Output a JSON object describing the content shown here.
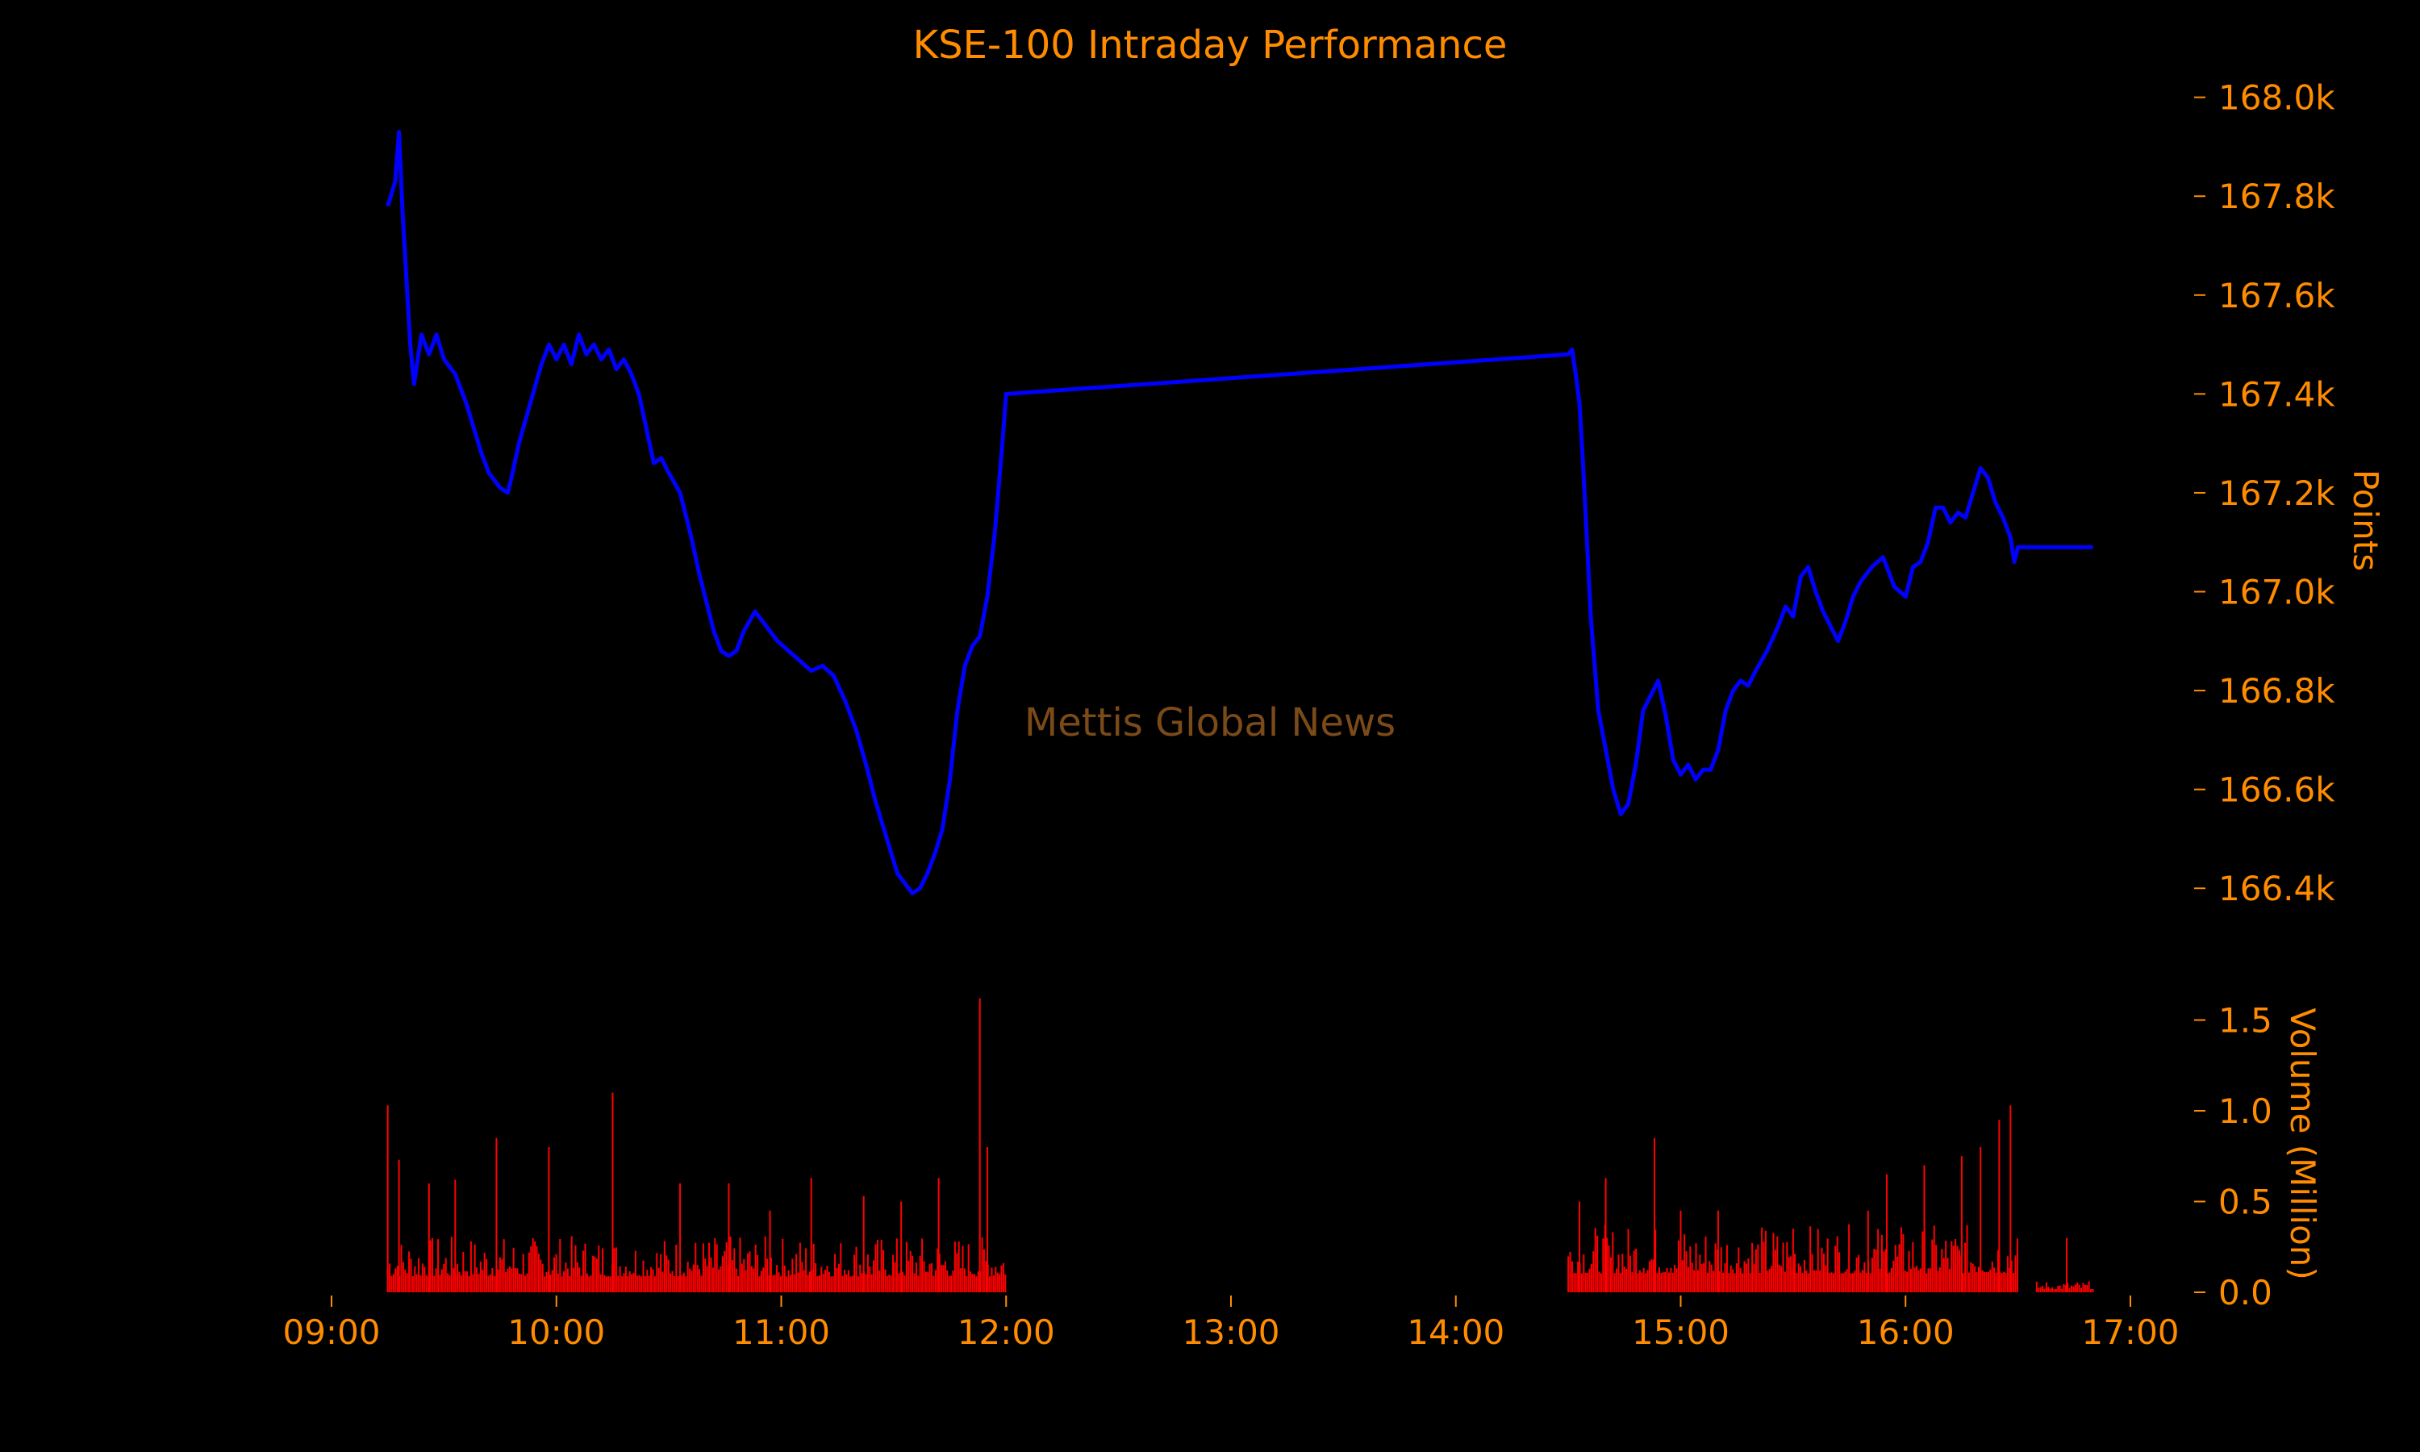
{
  "colors": {
    "background": "#000000",
    "text": "#ff8c00",
    "price_line": "#0000ff",
    "volume_bars": "#ff0000",
    "watermark": "#7a4a18"
  },
  "chart_data": [
    {
      "type": "line",
      "title": "KSE-100 Intraday Performance",
      "ylabel": "Points",
      "watermark": "Mettis Global News",
      "ylim": [
        166340,
        168050
      ],
      "yticks": [
        166400,
        166600,
        166800,
        167000,
        167200,
        167400,
        167600,
        167800,
        168000
      ],
      "ytick_labels": [
        "166.4k",
        "166.6k",
        "166.8k",
        "167.0k",
        "167.2k",
        "167.4k",
        "167.6k",
        "167.8k",
        "168.0k"
      ],
      "y_axis_position": "right",
      "grid": false,
      "series": [
        {
          "points": [
            [
              "09:15",
              167780
            ],
            [
              "09:17",
              167830
            ],
            [
              "09:18",
              167930
            ],
            [
              "09:19",
              167760
            ],
            [
              "09:21",
              167500
            ],
            [
              "09:22",
              167420
            ],
            [
              "09:24",
              167520
            ],
            [
              "09:26",
              167480
            ],
            [
              "09:28",
              167520
            ],
            [
              "09:30",
              167470
            ],
            [
              "09:33",
              167440
            ],
            [
              "09:36",
              167380
            ],
            [
              "09:38",
              167330
            ],
            [
              "09:40",
              167280
            ],
            [
              "09:42",
              167240
            ],
            [
              "09:45",
              167210
            ],
            [
              "09:47",
              167200
            ],
            [
              "09:48",
              167230
            ],
            [
              "09:50",
              167300
            ],
            [
              "09:53",
              167380
            ],
            [
              "09:56",
              167460
            ],
            [
              "09:58",
              167500
            ],
            [
              "10:00",
              167470
            ],
            [
              "10:02",
              167500
            ],
            [
              "10:04",
              167460
            ],
            [
              "10:06",
              167520
            ],
            [
              "10:08",
              167480
            ],
            [
              "10:10",
              167500
            ],
            [
              "10:12",
              167470
            ],
            [
              "10:14",
              167490
            ],
            [
              "10:16",
              167450
            ],
            [
              "10:18",
              167470
            ],
            [
              "10:20",
              167440
            ],
            [
              "10:22",
              167400
            ],
            [
              "10:24",
              167330
            ],
            [
              "10:26",
              167260
            ],
            [
              "10:28",
              167270
            ],
            [
              "10:30",
              167240
            ],
            [
              "10:33",
              167200
            ],
            [
              "10:36",
              167110
            ],
            [
              "10:38",
              167040
            ],
            [
              "10:40",
              166980
            ],
            [
              "10:42",
              166920
            ],
            [
              "10:44",
              166880
            ],
            [
              "10:46",
              166870
            ],
            [
              "10:48",
              166880
            ],
            [
              "10:50",
              166920
            ],
            [
              "10:53",
              166960
            ],
            [
              "10:56",
              166930
            ],
            [
              "10:59",
              166900
            ],
            [
              "11:02",
              166880
            ],
            [
              "11:05",
              166860
            ],
            [
              "11:08",
              166840
            ],
            [
              "11:11",
              166850
            ],
            [
              "11:14",
              166830
            ],
            [
              "11:17",
              166780
            ],
            [
              "11:20",
              166720
            ],
            [
              "11:23",
              166640
            ],
            [
              "11:25",
              166580
            ],
            [
              "11:27",
              166530
            ],
            [
              "11:29",
              166480
            ],
            [
              "11:31",
              166430
            ],
            [
              "11:33",
              166410
            ],
            [
              "11:35",
              166390
            ],
            [
              "11:37",
              166400
            ],
            [
              "11:39",
              166430
            ],
            [
              "11:41",
              166470
            ],
            [
              "11:43",
              166520
            ],
            [
              "11:45",
              166620
            ],
            [
              "11:47",
              166760
            ],
            [
              "11:49",
              166850
            ],
            [
              "11:51",
              166890
            ],
            [
              "11:53",
              166910
            ],
            [
              "11:55",
              166990
            ],
            [
              "11:57",
              167120
            ],
            [
              "11:59",
              167300
            ],
            [
              "12:00",
              167400
            ],
            [
              "14:30",
              167480
            ],
            [
              "14:31",
              167490
            ],
            [
              "14:32",
              167440
            ],
            [
              "14:33",
              167380
            ],
            [
              "14:34",
              167250
            ],
            [
              "14:35",
              167100
            ],
            [
              "14:36",
              166950
            ],
            [
              "14:38",
              166760
            ],
            [
              "14:40",
              166680
            ],
            [
              "14:42",
              166600
            ],
            [
              "14:44",
              166550
            ],
            [
              "14:46",
              166570
            ],
            [
              "14:48",
              166650
            ],
            [
              "14:50",
              166760
            ],
            [
              "14:52",
              166790
            ],
            [
              "14:54",
              166820
            ],
            [
              "14:56",
              166750
            ],
            [
              "14:58",
              166660
            ],
            [
              "15:00",
              166630
            ],
            [
              "15:02",
              166650
            ],
            [
              "15:04",
              166620
            ],
            [
              "15:06",
              166640
            ],
            [
              "15:08",
              166640
            ],
            [
              "15:10",
              166680
            ],
            [
              "15:12",
              166760
            ],
            [
              "15:14",
              166800
            ],
            [
              "15:16",
              166820
            ],
            [
              "15:18",
              166810
            ],
            [
              "15:20",
              166840
            ],
            [
              "15:23",
              166880
            ],
            [
              "15:26",
              166930
            ],
            [
              "15:28",
              166970
            ],
            [
              "15:30",
              166950
            ],
            [
              "15:32",
              167030
            ],
            [
              "15:34",
              167050
            ],
            [
              "15:36",
              167000
            ],
            [
              "15:38",
              166960
            ],
            [
              "15:40",
              166930
            ],
            [
              "15:42",
              166900
            ],
            [
              "15:44",
              166940
            ],
            [
              "15:46",
              166990
            ],
            [
              "15:48",
              167020
            ],
            [
              "15:51",
              167050
            ],
            [
              "15:54",
              167070
            ],
            [
              "15:57",
              167010
            ],
            [
              "16:00",
              166990
            ],
            [
              "16:02",
              167050
            ],
            [
              "16:04",
              167060
            ],
            [
              "16:06",
              167100
            ],
            [
              "16:08",
              167170
            ],
            [
              "16:10",
              167170
            ],
            [
              "16:12",
              167140
            ],
            [
              "16:14",
              167160
            ],
            [
              "16:16",
              167150
            ],
            [
              "16:18",
              167200
            ],
            [
              "16:20",
              167250
            ],
            [
              "16:22",
              167230
            ],
            [
              "16:24",
              167180
            ],
            [
              "16:26",
              167150
            ],
            [
              "16:28",
              167110
            ],
            [
              "16:29",
              167060
            ],
            [
              "16:30",
              167090
            ],
            [
              "16:50",
              167090
            ]
          ]
        }
      ]
    },
    {
      "type": "bar",
      "ylabel": "Volume (Million)",
      "ylim": [
        0,
        1.6
      ],
      "yticks": [
        0,
        0.5,
        1,
        1.5
      ],
      "ytick_labels": [
        "0.0",
        "0.5",
        "1.0",
        "1.5"
      ],
      "xlim": [
        "09:00",
        "17:00"
      ],
      "xticks": [
        "09:00",
        "10:00",
        "11:00",
        "12:00",
        "13:00",
        "14:00",
        "15:00",
        "16:00",
        "17:00"
      ],
      "sessions": [
        {
          "start": "09:15",
          "end": "12:00",
          "typical_volume": 0.25
        },
        {
          "start": "14:30",
          "end": "16:30",
          "typical_volume": 0.3
        },
        {
          "start": "16:35",
          "end": "16:50",
          "typical_volume": 0.05
        }
      ],
      "spikes": [
        [
          "09:15",
          1.03
        ],
        [
          "09:18",
          0.73
        ],
        [
          "09:26",
          0.6
        ],
        [
          "09:33",
          0.62
        ],
        [
          "09:44",
          0.85
        ],
        [
          "09:58",
          0.8
        ],
        [
          "10:15",
          1.1
        ],
        [
          "10:33",
          0.6
        ],
        [
          "10:46",
          0.6
        ],
        [
          "10:57",
          0.45
        ],
        [
          "11:08",
          0.63
        ],
        [
          "11:22",
          0.53
        ],
        [
          "11:32",
          0.5
        ],
        [
          "11:42",
          0.63
        ],
        [
          "11:53",
          1.62
        ],
        [
          "11:55",
          0.8
        ],
        [
          "14:33",
          0.5
        ],
        [
          "14:40",
          0.63
        ],
        [
          "14:53",
          0.85
        ],
        [
          "15:00",
          0.45
        ],
        [
          "15:10",
          0.45
        ],
        [
          "15:30",
          0.35
        ],
        [
          "15:50",
          0.45
        ],
        [
          "15:55",
          0.65
        ],
        [
          "16:05",
          0.7
        ],
        [
          "16:15",
          0.75
        ],
        [
          "16:20",
          0.8
        ],
        [
          "16:25",
          0.95
        ],
        [
          "16:28",
          1.03
        ],
        [
          "16:43",
          0.3
        ]
      ]
    }
  ]
}
